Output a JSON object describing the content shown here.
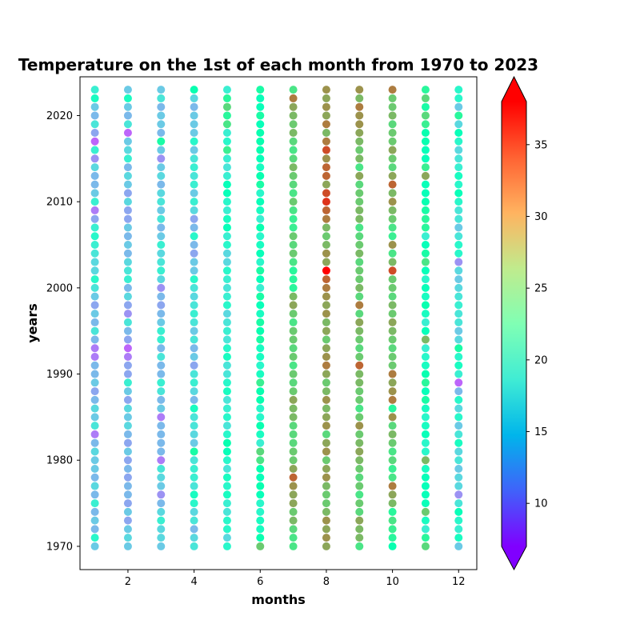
{
  "chart_data": {
    "type": "scatter",
    "title": "Temperature on the 1st of each month from 1970 to 2023",
    "xlabel": "months",
    "ylabel": "years",
    "x_ticks": [
      2,
      4,
      6,
      8,
      10,
      12
    ],
    "y_ticks": [
      1970,
      1980,
      1990,
      2000,
      2010,
      2020
    ],
    "xlim": [
      0.55,
      12.55
    ],
    "ylim": [
      1967.3,
      2024.5
    ],
    "grid": false,
    "colormap": "rainbow",
    "colorbar": {
      "range": [
        7.0,
        38.0
      ],
      "extend": "both",
      "ticks": [
        10,
        15,
        20,
        25,
        30,
        35
      ]
    },
    "months": [
      1,
      2,
      3,
      4,
      5,
      6,
      7,
      8,
      9,
      10,
      11,
      12
    ],
    "years": [
      1970,
      1971,
      1972,
      1973,
      1974,
      1975,
      1976,
      1977,
      1978,
      1979,
      1980,
      1981,
      1982,
      1983,
      1984,
      1985,
      1986,
      1987,
      1988,
      1989,
      1990,
      1991,
      1992,
      1993,
      1994,
      1995,
      1996,
      1997,
      1998,
      1999,
      2000,
      2001,
      2002,
      2003,
      2004,
      2005,
      2006,
      2007,
      2008,
      2009,
      2010,
      2011,
      2012,
      2013,
      2014,
      2015,
      2016,
      2017,
      2018,
      2019,
      2020,
      2021,
      2022,
      2023
    ],
    "temperature_by_month": [
      [
        16,
        20,
        15,
        16,
        15,
        19,
        15,
        17,
        15,
        16,
        16,
        17,
        15,
        12,
        18,
        16,
        17,
        15,
        14,
        16,
        15,
        15,
        12,
        12,
        15,
        18,
        15,
        16,
        14,
        16,
        18,
        20,
        17,
        17,
        18,
        19,
        20,
        19,
        14,
        12,
        19,
        16,
        15,
        15,
        17,
        13,
        19,
        11,
        14,
        18,
        15,
        16,
        21,
        19
      ],
      [
        16,
        17,
        16,
        14,
        16,
        14,
        15,
        15,
        14,
        15,
        14,
        16,
        14,
        15,
        17,
        16,
        17,
        14,
        16,
        19,
        14,
        14,
        12,
        11,
        14,
        15,
        18,
        13,
        14,
        17,
        15,
        19,
        18,
        17,
        15,
        16,
        15,
        16,
        14,
        14,
        17,
        14,
        16,
        17,
        15,
        19,
        17,
        16,
        11,
        18,
        15,
        16,
        21,
        16
      ],
      [
        16,
        17,
        17,
        19,
        17,
        15,
        13,
        16,
        17,
        18,
        12,
        15,
        15,
        15,
        15,
        12,
        16,
        15,
        18,
        19,
        15,
        15,
        18,
        15,
        19,
        19,
        16,
        15,
        14,
        15,
        13,
        17,
        19,
        18,
        17,
        19,
        16,
        15,
        18,
        16,
        18,
        17,
        15,
        17,
        16,
        13,
        16,
        24,
        15,
        16,
        16,
        15,
        18,
        16
      ],
      [
        18,
        17,
        15,
        18,
        17,
        20,
        21,
        18,
        19,
        19,
        18,
        24,
        16,
        17,
        18,
        18,
        21,
        15,
        17,
        19,
        18,
        14,
        16,
        15,
        18,
        16,
        18,
        19,
        18,
        17,
        18,
        20,
        16,
        16,
        14,
        15,
        20,
        15,
        14,
        17,
        19,
        16,
        19,
        18,
        19,
        18,
        16,
        20,
        16,
        16,
        16,
        15,
        17,
        23
      ],
      [
        20,
        17,
        20,
        20,
        18,
        19,
        21,
        20,
        21,
        18,
        20,
        22,
        23,
        20,
        18,
        20,
        19,
        18,
        21,
        20,
        18,
        18,
        21,
        20,
        18,
        19,
        18,
        17,
        20,
        19,
        18,
        19,
        20,
        17,
        17,
        20,
        19,
        22,
        21,
        19,
        20,
        22,
        22,
        19,
        18,
        19,
        26,
        20,
        19,
        27,
        25,
        28,
        25,
        19
      ],
      [
        29,
        23,
        21,
        21,
        20,
        20,
        22,
        23,
        22,
        23,
        27,
        28,
        19,
        21,
        23,
        20,
        20,
        23,
        23,
        26,
        21,
        20,
        21,
        21,
        24,
        23,
        24,
        21,
        22,
        24,
        19,
        22,
        24,
        20,
        22,
        21,
        20,
        23,
        19,
        21,
        22,
        20,
        24,
        23,
        21,
        22,
        23,
        23,
        23,
        22,
        24,
        22,
        22,
        24
      ],
      [
        27,
        27,
        28,
        30,
        29,
        31,
        31,
        32,
        34,
        31,
        29,
        29,
        28,
        28,
        28,
        30,
        30,
        31,
        29,
        28,
        29,
        27,
        29,
        28,
        29,
        29,
        27,
        29,
        31,
        30,
        25,
        25,
        25,
        27,
        29,
        28,
        29,
        26,
        26,
        27,
        29,
        27,
        28,
        29,
        30,
        28,
        27,
        28,
        30,
        29,
        30,
        31,
        33,
        27
      ],
      [
        31,
        32,
        31,
        32,
        30,
        29,
        29,
        30,
        32,
        31,
        29,
        32,
        31,
        28,
        32,
        31,
        30,
        32,
        30,
        29,
        31,
        33,
        32,
        31,
        29,
        31,
        30,
        32,
        31,
        32,
        33,
        34,
        38,
        31,
        32,
        30,
        29,
        30,
        33,
        34,
        36,
        35,
        31,
        34,
        34,
        32,
        35,
        33,
        30,
        33,
        31,
        32,
        31,
        32
      ],
      [
        27,
        30,
        30,
        31,
        28,
        29,
        27,
        29,
        28,
        29,
        30,
        31,
        30,
        29,
        32,
        29,
        27,
        29,
        29,
        30,
        30,
        34,
        29,
        28,
        29,
        30,
        31,
        28,
        33,
        28,
        30,
        29,
        29,
        28,
        30,
        29,
        28,
        27,
        30,
        30,
        29,
        29,
        28,
        31,
        27,
        30,
        29,
        30,
        31,
        32,
        32,
        33,
        30,
        32
      ],
      [
        23,
        25,
        26,
        27,
        25,
        30,
        31,
        33,
        27,
        26,
        28,
        27,
        29,
        30,
        28,
        32,
        25,
        33,
        32,
        31,
        33,
        29,
        29,
        28,
        29,
        30,
        31,
        29,
        30,
        28,
        29,
        29,
        35,
        30,
        27,
        32,
        26,
        27,
        29,
        30,
        32,
        30,
        34,
        31,
        28,
        29,
        31,
        29,
        29,
        28,
        30,
        29,
        29,
        33
      ],
      [
        28,
        25,
        19,
        21,
        29,
        22,
        22,
        22,
        22,
        21,
        30,
        20,
        20,
        22,
        21,
        20,
        21,
        24,
        22,
        25,
        23,
        21,
        20,
        19,
        30,
        22,
        19,
        21,
        23,
        21,
        22,
        20,
        22,
        27,
        24,
        22,
        19,
        25,
        25,
        24,
        23,
        22,
        22,
        31,
        26,
        22,
        22,
        23,
        23,
        26,
        28,
        24,
        28,
        25
      ],
      [
        16,
        21,
        19,
        20,
        22,
        18,
        13,
        17,
        17,
        16,
        18,
        17,
        21,
        18,
        16,
        20,
        17,
        20,
        15,
        11,
        19,
        21,
        20,
        24,
        17,
        16,
        18,
        18,
        19,
        18,
        17,
        16,
        17,
        13,
        20,
        20,
        18,
        16,
        18,
        18,
        20,
        22,
        20,
        21,
        19,
        18,
        17,
        20,
        22,
        17,
        25,
        16,
        20,
        20
      ]
    ]
  }
}
